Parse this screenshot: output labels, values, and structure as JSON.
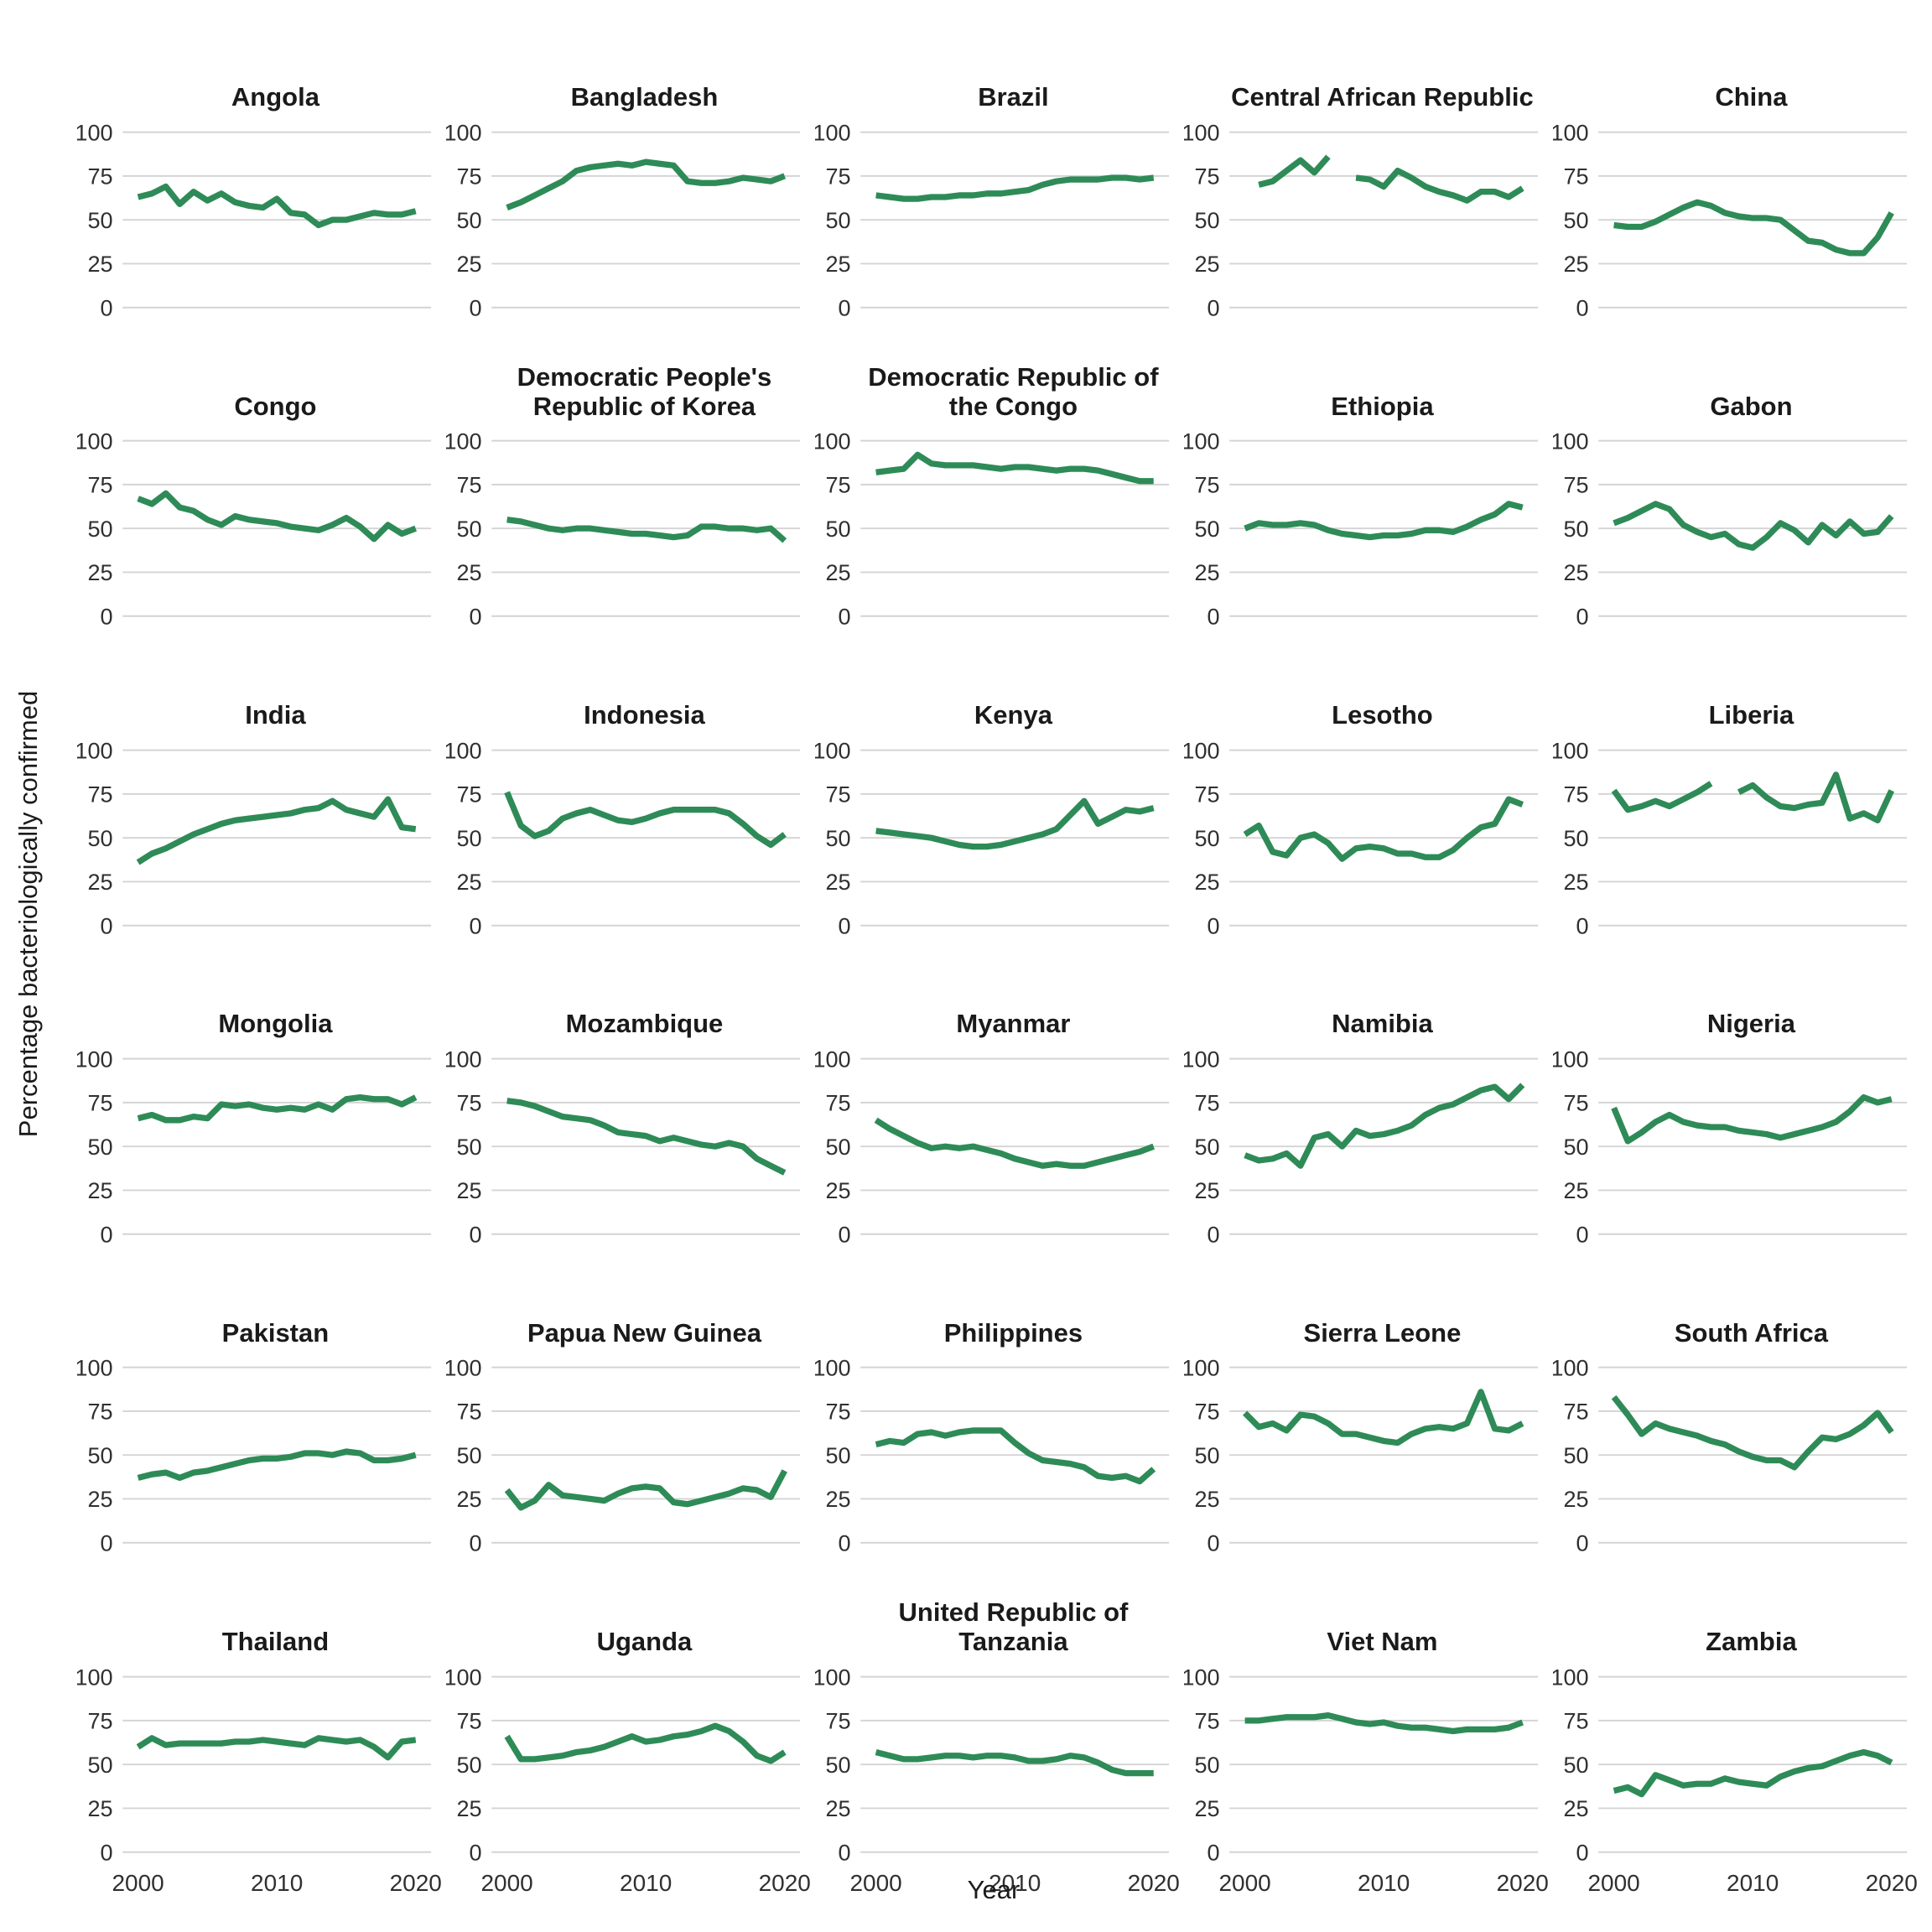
{
  "chart_data": {
    "type": "line",
    "title": "",
    "xlabel": "Year",
    "ylabel": "Percentage bacteriologically confirmed",
    "x_ticks": [
      2000,
      2010,
      2020
    ],
    "y_ticks": [
      0,
      25,
      50,
      75,
      100
    ],
    "ylim": [
      0,
      100
    ],
    "xlim": [
      2000,
      2020
    ],
    "grid": "horizontal-only",
    "legend": "none",
    "line_color": "#2e8b57",
    "grid_color": "#d4d4d4",
    "tick_color": "#303030",
    "years": [
      2000,
      2001,
      2002,
      2003,
      2004,
      2005,
      2006,
      2007,
      2008,
      2009,
      2010,
      2011,
      2012,
      2013,
      2014,
      2015,
      2016,
      2017,
      2018,
      2019,
      2020
    ],
    "series": [
      {
        "name": "Angola",
        "values": [
          63,
          65,
          69,
          59,
          66,
          61,
          65,
          60,
          58,
          57,
          62,
          54,
          53,
          47,
          50,
          50,
          52,
          54,
          53,
          53,
          55
        ]
      },
      {
        "name": "Bangladesh",
        "values": [
          57,
          60,
          64,
          68,
          72,
          78,
          80,
          81,
          82,
          81,
          83,
          82,
          81,
          72,
          71,
          71,
          72,
          74,
          73,
          72,
          75
        ]
      },
      {
        "name": "Brazil",
        "values": [
          64,
          63,
          62,
          62,
          63,
          63,
          64,
          64,
          65,
          65,
          66,
          67,
          70,
          72,
          73,
          73,
          73,
          74,
          74,
          73,
          74
        ]
      },
      {
        "name": "Central African Republic",
        "values": [
          null,
          70,
          72,
          78,
          84,
          77,
          86,
          null,
          74,
          73,
          69,
          78,
          74,
          69,
          66,
          64,
          61,
          66,
          66,
          63,
          68
        ]
      },
      {
        "name": "China",
        "values": [
          47,
          46,
          46,
          49,
          53,
          57,
          60,
          58,
          54,
          52,
          51,
          51,
          50,
          44,
          38,
          37,
          33,
          31,
          31,
          40,
          54
        ]
      },
      {
        "name": "Congo",
        "values": [
          67,
          64,
          70,
          62,
          60,
          55,
          52,
          57,
          55,
          54,
          53,
          51,
          50,
          49,
          52,
          56,
          51,
          44,
          52,
          47,
          50
        ]
      },
      {
        "name": "Democratic People's Republic of Korea",
        "values": [
          55,
          54,
          52,
          50,
          49,
          50,
          50,
          49,
          48,
          47,
          47,
          46,
          45,
          46,
          51,
          51,
          50,
          50,
          49,
          50,
          43
        ]
      },
      {
        "name": "Democratic Republic of the Congo",
        "values": [
          82,
          83,
          84,
          92,
          87,
          86,
          86,
          86,
          85,
          84,
          85,
          85,
          84,
          83,
          84,
          84,
          83,
          81,
          79,
          77,
          77
        ]
      },
      {
        "name": "Ethiopia",
        "values": [
          50,
          53,
          52,
          52,
          53,
          52,
          49,
          47,
          46,
          45,
          46,
          46,
          47,
          49,
          49,
          48,
          51,
          55,
          58,
          64,
          62
        ]
      },
      {
        "name": "Gabon",
        "values": [
          53,
          56,
          60,
          64,
          61,
          52,
          48,
          45,
          47,
          41,
          39,
          45,
          53,
          49,
          42,
          52,
          46,
          54,
          47,
          48,
          57
        ]
      },
      {
        "name": "India",
        "values": [
          36,
          41,
          44,
          48,
          52,
          55,
          58,
          60,
          61,
          62,
          63,
          64,
          66,
          67,
          71,
          66,
          64,
          62,
          72,
          56,
          55
        ]
      },
      {
        "name": "Indonesia",
        "values": [
          76,
          57,
          51,
          54,
          61,
          64,
          66,
          63,
          60,
          59,
          61,
          64,
          66,
          66,
          66,
          66,
          64,
          58,
          51,
          46,
          52
        ]
      },
      {
        "name": "Kenya",
        "values": [
          54,
          53,
          52,
          51,
          50,
          48,
          46,
          45,
          45,
          46,
          48,
          50,
          52,
          55,
          63,
          71,
          58,
          62,
          66,
          65,
          67
        ]
      },
      {
        "name": "Lesotho",
        "values": [
          52,
          57,
          42,
          40,
          50,
          52,
          47,
          38,
          44,
          45,
          44,
          41,
          41,
          39,
          39,
          43,
          50,
          56,
          58,
          72,
          69
        ]
      },
      {
        "name": "Liberia",
        "values": [
          77,
          66,
          68,
          71,
          68,
          72,
          76,
          81,
          null,
          76,
          80,
          73,
          68,
          67,
          69,
          70,
          86,
          61,
          64,
          60,
          77
        ]
      },
      {
        "name": "Mongolia",
        "values": [
          66,
          68,
          65,
          65,
          67,
          66,
          74,
          73,
          74,
          72,
          71,
          72,
          71,
          74,
          71,
          77,
          78,
          77,
          77,
          74,
          78
        ]
      },
      {
        "name": "Mozambique",
        "values": [
          76,
          75,
          73,
          70,
          67,
          66,
          65,
          62,
          58,
          57,
          56,
          53,
          55,
          53,
          51,
          50,
          52,
          50,
          43,
          39,
          35
        ]
      },
      {
        "name": "Myanmar",
        "values": [
          65,
          60,
          56,
          52,
          49,
          50,
          49,
          50,
          48,
          46,
          43,
          41,
          39,
          40,
          39,
          39,
          41,
          43,
          45,
          47,
          50
        ]
      },
      {
        "name": "Namibia",
        "values": [
          45,
          42,
          43,
          46,
          39,
          55,
          57,
          50,
          59,
          56,
          57,
          59,
          62,
          68,
          72,
          74,
          78,
          82,
          84,
          77,
          85
        ]
      },
      {
        "name": "Nigeria",
        "values": [
          72,
          53,
          58,
          64,
          68,
          64,
          62,
          61,
          61,
          59,
          58,
          57,
          55,
          57,
          59,
          61,
          64,
          70,
          78,
          75,
          77
        ]
      },
      {
        "name": "Pakistan",
        "values": [
          37,
          39,
          40,
          37,
          40,
          41,
          43,
          45,
          47,
          48,
          48,
          49,
          51,
          51,
          50,
          52,
          51,
          47,
          47,
          48,
          50
        ]
      },
      {
        "name": "Papua New Guinea",
        "values": [
          30,
          20,
          24,
          33,
          27,
          26,
          25,
          24,
          28,
          31,
          32,
          31,
          23,
          22,
          24,
          26,
          28,
          31,
          30,
          26,
          41
        ]
      },
      {
        "name": "Philippines",
        "values": [
          56,
          58,
          57,
          62,
          63,
          61,
          63,
          64,
          64,
          64,
          57,
          51,
          47,
          46,
          45,
          43,
          38,
          37,
          38,
          35,
          42
        ]
      },
      {
        "name": "Sierra Leone",
        "values": [
          74,
          66,
          68,
          64,
          73,
          72,
          68,
          62,
          62,
          60,
          58,
          57,
          62,
          65,
          66,
          65,
          68,
          86,
          65,
          64,
          68
        ]
      },
      {
        "name": "South Africa",
        "values": [
          83,
          73,
          62,
          68,
          65,
          63,
          61,
          58,
          56,
          52,
          49,
          47,
          47,
          43,
          52,
          60,
          59,
          62,
          67,
          74,
          63
        ]
      },
      {
        "name": "Thailand",
        "values": [
          60,
          65,
          61,
          62,
          62,
          62,
          62,
          63,
          63,
          64,
          63,
          62,
          61,
          65,
          64,
          63,
          64,
          60,
          54,
          63,
          64
        ]
      },
      {
        "name": "Uganda",
        "values": [
          66,
          53,
          53,
          54,
          55,
          57,
          58,
          60,
          63,
          66,
          63,
          64,
          66,
          67,
          69,
          72,
          69,
          63,
          55,
          52,
          57
        ]
      },
      {
        "name": "United Republic of Tanzania",
        "values": [
          57,
          55,
          53,
          53,
          54,
          55,
          55,
          54,
          55,
          55,
          54,
          52,
          52,
          53,
          55,
          54,
          51,
          47,
          45,
          45,
          45
        ]
      },
      {
        "name": "Viet Nam",
        "values": [
          75,
          75,
          76,
          77,
          77,
          77,
          78,
          76,
          74,
          73,
          74,
          72,
          71,
          71,
          70,
          69,
          70,
          70,
          70,
          71,
          74
        ]
      },
      {
        "name": "Zambia",
        "values": [
          35,
          37,
          33,
          44,
          41,
          38,
          39,
          39,
          42,
          40,
          39,
          38,
          43,
          46,
          48,
          49,
          52,
          55,
          57,
          55,
          51
        ]
      }
    ]
  }
}
